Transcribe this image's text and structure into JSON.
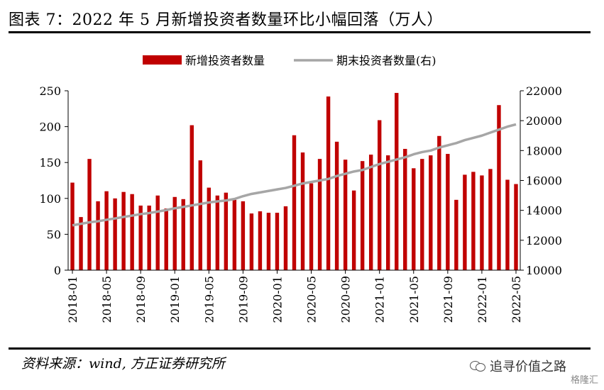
{
  "title": "图表 7：2022 年 5 月新增投资者数量环比小幅回落（万人）",
  "source": "资料来源：wind, 方正证券研究所",
  "watermark": {
    "icon": "wechat-icon",
    "text": "追寻价值之路",
    "corner": "格隆汇"
  },
  "chart_data": {
    "type": "bar+line",
    "categories": [
      "2018-01",
      "2018-02",
      "2018-03",
      "2018-04",
      "2018-05",
      "2018-06",
      "2018-07",
      "2018-08",
      "2018-09",
      "2018-10",
      "2018-11",
      "2018-12",
      "2019-01",
      "2019-02",
      "2019-03",
      "2019-04",
      "2019-05",
      "2019-06",
      "2019-07",
      "2019-08",
      "2019-09",
      "2019-10",
      "2019-11",
      "2019-12",
      "2020-01",
      "2020-02",
      "2020-03",
      "2020-04",
      "2020-05",
      "2020-06",
      "2020-07",
      "2020-08",
      "2020-09",
      "2020-10",
      "2020-11",
      "2020-12",
      "2021-01",
      "2021-02",
      "2021-03",
      "2021-04",
      "2021-05",
      "2021-06",
      "2021-07",
      "2021-08",
      "2021-09",
      "2021-10",
      "2021-11",
      "2021-12",
      "2022-01",
      "2022-02",
      "2022-03",
      "2022-04",
      "2022-05"
    ],
    "xtick_labels": [
      "2018-01",
      "2018-05",
      "2018-09",
      "2019-01",
      "2019-05",
      "2019-09",
      "2020-01",
      "2020-05",
      "2020-09",
      "2021-01",
      "2021-05",
      "2021-09",
      "2022-01",
      "2022-05"
    ],
    "series": [
      {
        "name": "新增投资者数量",
        "type": "bar",
        "axis": "left",
        "color": "#C00000",
        "values": [
          122,
          74,
          155,
          96,
          110,
          100,
          109,
          106,
          90,
          90,
          104,
          86,
          102,
          99,
          202,
          153,
          115,
          104,
          108,
          98,
          96,
          79,
          82,
          80,
          80,
          89,
          188,
          164,
          121,
          155,
          242,
          179,
          154,
          111,
          152,
          161,
          209,
          160,
          247,
          169,
          142,
          155,
          160,
          187,
          162,
          98,
          133,
          137,
          132,
          141,
          230,
          126,
          120
        ]
      },
      {
        "name": "期末投资者数量(右)",
        "type": "line",
        "axis": "right",
        "color": "#A6A6A6",
        "values": [
          13000,
          13100,
          13200,
          13270,
          13370,
          13460,
          13560,
          13650,
          13750,
          13820,
          13920,
          14020,
          14140,
          14230,
          14330,
          14430,
          14530,
          14600,
          14660,
          14760,
          14950,
          15100,
          15200,
          15300,
          15400,
          15500,
          15650,
          15800,
          15900,
          16000,
          16100,
          16300,
          16450,
          16600,
          16700,
          16900,
          17100,
          17250,
          17400,
          17550,
          17750,
          17900,
          18000,
          18200,
          18350,
          18500,
          18700,
          18850,
          19000,
          19200,
          19400,
          19600,
          19750
        ]
      }
    ],
    "y_left": {
      "min": 0,
      "max": 250,
      "ticks": [
        0,
        50,
        100,
        150,
        200,
        250
      ]
    },
    "y_right": {
      "min": 10000,
      "max": 22000,
      "ticks": [
        10000,
        12000,
        14000,
        16000,
        18000,
        20000,
        22000
      ]
    },
    "legend_position": "top-center",
    "grid": false
  }
}
